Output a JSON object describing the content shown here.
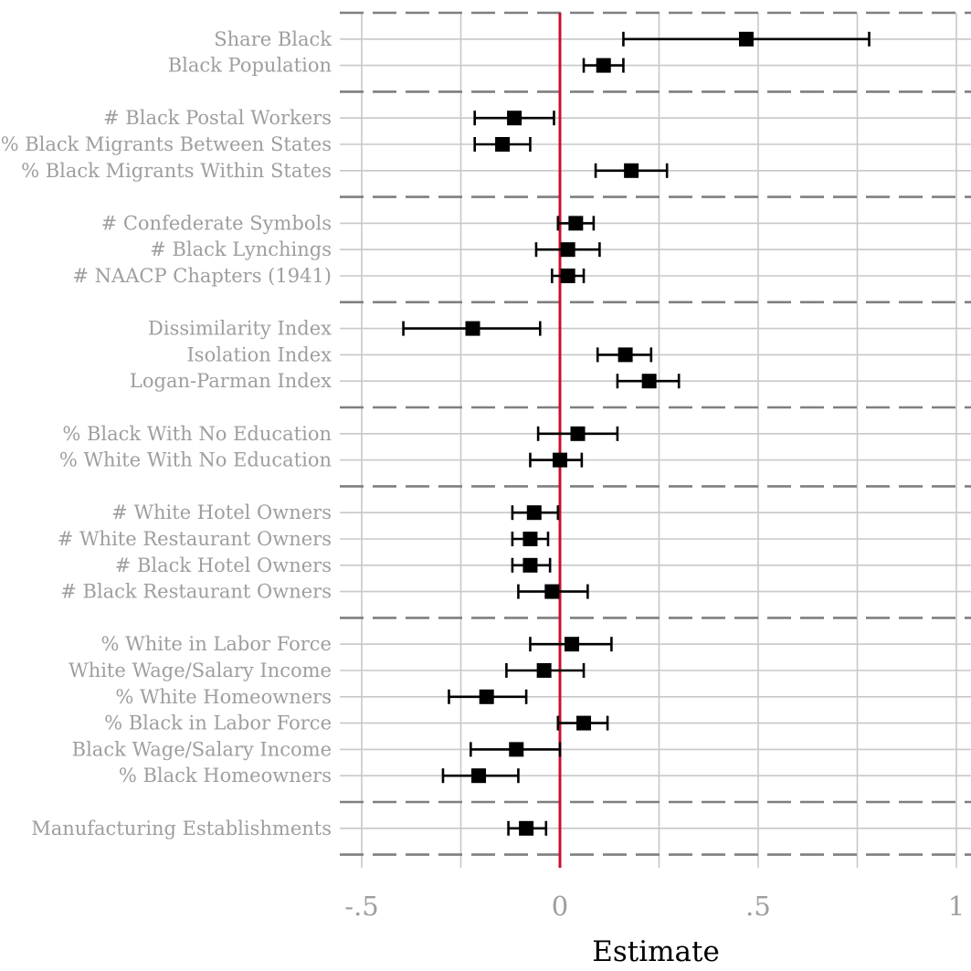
{
  "chart_data": {
    "type": "scatter",
    "subtype": "coefficient-plot-with-error-bars",
    "xlabel": "Estimate",
    "ylabel": "",
    "xlim": [
      -0.55,
      1.05
    ],
    "xticks": [
      -0.5,
      0,
      0.5,
      1
    ],
    "xtick_labels": [
      "-.5",
      "0",
      ".5",
      "1"
    ],
    "reference_line_x": 0,
    "grid": true,
    "legend": "none",
    "groups": [
      {
        "rows": [
          {
            "label": "Share Black",
            "estimate": 0.47,
            "lower": 0.16,
            "upper": 0.78
          },
          {
            "label": "Black Population",
            "estimate": 0.11,
            "lower": 0.06,
            "upper": 0.16
          }
        ]
      },
      {
        "rows": [
          {
            "label": "# Black Postal Workers",
            "estimate": -0.115,
            "lower": -0.215,
            "upper": -0.015
          },
          {
            "label": "% Black Migrants Between States",
            "estimate": -0.145,
            "lower": -0.215,
            "upper": -0.075
          },
          {
            "label": "% Black Migrants Within States",
            "estimate": 0.18,
            "lower": 0.09,
            "upper": 0.27
          }
        ]
      },
      {
        "rows": [
          {
            "label": "# Confederate Symbols",
            "estimate": 0.04,
            "lower": -0.005,
            "upper": 0.085
          },
          {
            "label": "# Black Lynchings",
            "estimate": 0.02,
            "lower": -0.06,
            "upper": 0.1
          },
          {
            "label": "# NAACP Chapters (1941)",
            "estimate": 0.02,
            "lower": -0.02,
            "upper": 0.06
          }
        ]
      },
      {
        "rows": [
          {
            "label": "Dissimilarity Index",
            "estimate": -0.22,
            "lower": -0.395,
            "upper": -0.05
          },
          {
            "label": "Isolation Index",
            "estimate": 0.165,
            "lower": 0.095,
            "upper": 0.23
          },
          {
            "label": "Logan-Parman Index",
            "estimate": 0.225,
            "lower": 0.145,
            "upper": 0.3
          }
        ]
      },
      {
        "rows": [
          {
            "label": "% Black With No Education",
            "estimate": 0.045,
            "lower": -0.055,
            "upper": 0.145
          },
          {
            "label": "% White With No Education",
            "estimate": 0.0,
            "lower": -0.075,
            "upper": 0.055
          }
        ]
      },
      {
        "rows": [
          {
            "label": "# White Hotel Owners",
            "estimate": -0.065,
            "lower": -0.12,
            "upper": -0.005
          },
          {
            "label": "# White Restaurant Owners",
            "estimate": -0.075,
            "lower": -0.12,
            "upper": -0.03
          },
          {
            "label": "# Black Hotel Owners",
            "estimate": -0.075,
            "lower": -0.12,
            "upper": -0.025
          },
          {
            "label": "# Black Restaurant Owners",
            "estimate": -0.02,
            "lower": -0.105,
            "upper": 0.07
          }
        ]
      },
      {
        "rows": [
          {
            "label": "% White in Labor Force",
            "estimate": 0.03,
            "lower": -0.075,
            "upper": 0.13
          },
          {
            "label": "White Wage/Salary Income",
            "estimate": -0.04,
            "lower": -0.135,
            "upper": 0.06
          },
          {
            "label": "% White Homeowners",
            "estimate": -0.185,
            "lower": -0.28,
            "upper": -0.085
          },
          {
            "label": "% Black in Labor Force",
            "estimate": 0.06,
            "lower": -0.005,
            "upper": 0.12
          },
          {
            "label": "Black Wage/Salary Income",
            "estimate": -0.11,
            "lower": -0.225,
            "upper": 0.0
          },
          {
            "label": "% Black Homeowners",
            "estimate": -0.205,
            "lower": -0.295,
            "upper": -0.105
          }
        ]
      },
      {
        "rows": [
          {
            "label": "Manufacturing Establishments",
            "estimate": -0.085,
            "lower": -0.13,
            "upper": -0.035
          }
        ]
      }
    ],
    "colors": {
      "point": "#000000",
      "errorbar": "#000000",
      "reference_line": "#c8102e",
      "separator": "#7f7f7f",
      "grid": "#c8c8c8",
      "tick_text": "#9e9e9e",
      "axis_title": "#000000"
    }
  }
}
